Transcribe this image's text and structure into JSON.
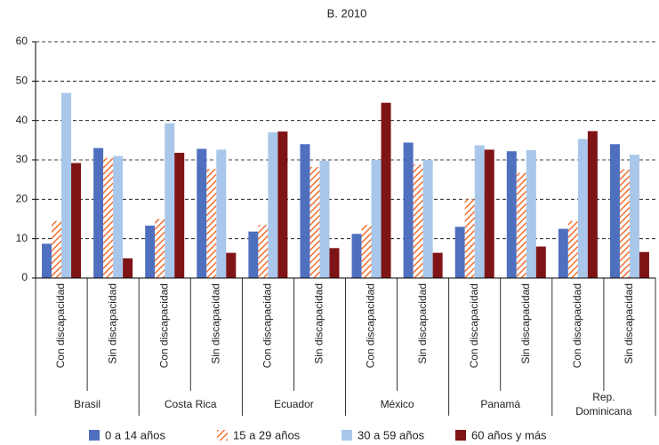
{
  "chart_data": {
    "type": "bar",
    "title": "B. 2010",
    "categories": [
      "Con discapacidad",
      "Sin discapacidad",
      "Con discapacidad",
      "Sin discapacidad",
      "Con discapacidad",
      "Sin discapacidad",
      "Con discapacidad",
      "Sin discapacidad",
      "Con discapacidad",
      "Sin discapacidad",
      "Con discapacidad",
      "Sin discapacidad"
    ],
    "groups": [
      "Brasil",
      "Costa Rica",
      "Ecuador",
      "México",
      "Panamá",
      "Rep. Dominicana"
    ],
    "series": [
      {
        "name": "0 a 14 años",
        "color": "#4f6fbf",
        "values": [
          8.7,
          33,
          13.3,
          32.8,
          11.8,
          34,
          11.2,
          34.4,
          13,
          32.2,
          12.5,
          34
        ]
      },
      {
        "name": "15 a 29 años",
        "color": "#f07030",
        "hatch": true,
        "values": [
          14.5,
          30.5,
          15,
          27.7,
          13.5,
          28.2,
          13.5,
          28.8,
          20,
          26.7,
          14.5,
          27.6
        ]
      },
      {
        "name": "30 a 59 años",
        "color": "#a9c7ea",
        "values": [
          47,
          31,
          39.3,
          32.6,
          37,
          29.8,
          30,
          30,
          33.7,
          32.5,
          35.3,
          31.3
        ]
      },
      {
        "name": "60 años y más",
        "color": "#7f1416",
        "values": [
          29.2,
          5,
          31.8,
          6.4,
          37.2,
          7.6,
          44.5,
          6.4,
          32.6,
          8,
          37.3,
          6.6
        ]
      }
    ],
    "ylim": [
      0,
      60
    ],
    "yticks": [
      0,
      10,
      20,
      30,
      40,
      50,
      60
    ],
    "grid": true
  }
}
